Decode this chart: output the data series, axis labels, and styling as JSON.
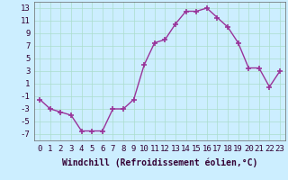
{
  "x": [
    0,
    1,
    2,
    3,
    4,
    5,
    6,
    7,
    8,
    9,
    10,
    11,
    12,
    13,
    14,
    15,
    16,
    17,
    18,
    19,
    20,
    21,
    22,
    23
  ],
  "y": [
    -1.5,
    -3.0,
    -3.5,
    -4.0,
    -6.5,
    -6.5,
    -6.5,
    -3.0,
    -3.0,
    -1.5,
    4.0,
    7.5,
    8.0,
    10.5,
    12.5,
    12.5,
    13.0,
    11.5,
    10.0,
    7.5,
    3.5,
    3.5,
    0.5,
    3.0
  ],
  "line_color": "#993399",
  "marker": "+",
  "marker_size": 4,
  "marker_linewidth": 1.2,
  "line_width": 1.0,
  "background_color": "#cceeff",
  "grid_color": "#aaddcc",
  "xlabel": "Windchill (Refroidissement éolien,°C)",
  "xlabel_fontsize": 7,
  "ytick_labels": [
    "13",
    "11",
    "9",
    "7",
    "5",
    "3",
    "1",
    "-1",
    "-3",
    "-5",
    "-7"
  ],
  "ytick_values": [
    13,
    11,
    9,
    7,
    5,
    3,
    1,
    -1,
    -3,
    -5,
    -7
  ],
  "xlim": [
    -0.5,
    23.5
  ],
  "ylim": [
    -8.0,
    14.0
  ],
  "xtick_values": [
    0,
    1,
    2,
    3,
    4,
    5,
    6,
    7,
    8,
    9,
    10,
    11,
    12,
    13,
    14,
    15,
    16,
    17,
    18,
    19,
    20,
    21,
    22,
    23
  ],
  "tick_fontsize": 6.5
}
